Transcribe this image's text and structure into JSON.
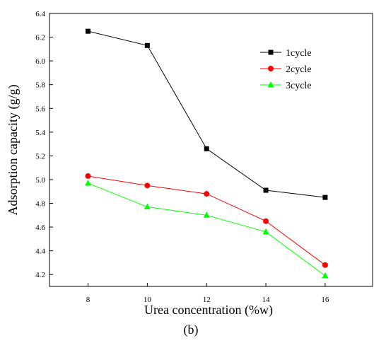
{
  "chart_data": {
    "type": "line",
    "xlabel": "Urea concentration (%w)",
    "ylabel": "Adsorption capacity (g/g)",
    "caption": "(b)",
    "x": [
      8,
      10,
      12,
      14,
      16
    ],
    "x_ticks": [
      "8",
      "10",
      "12",
      "14",
      "16"
    ],
    "y_ticks": [
      "4.2",
      "4.4",
      "4.6",
      "4.8",
      "5.0",
      "5.2",
      "5.4",
      "5.6",
      "5.8",
      "6.0",
      "6.2",
      "6.4"
    ],
    "xlim": [
      6.7,
      17.6
    ],
    "ylim": [
      4.1,
      6.4
    ],
    "grid": false,
    "legend_position": "top-right",
    "series": [
      {
        "name": "1cycle",
        "color": "#000000",
        "marker": "square",
        "values": [
          6.25,
          6.13,
          5.26,
          4.91,
          4.85
        ]
      },
      {
        "name": "2cycle",
        "color": "#ff0000",
        "marker": "circle",
        "values": [
          5.03,
          4.95,
          4.88,
          4.65,
          4.28
        ]
      },
      {
        "name": "3cycle",
        "color": "#00ff00",
        "marker": "triangle",
        "values": [
          4.97,
          4.77,
          4.7,
          4.56,
          4.19
        ]
      }
    ]
  }
}
